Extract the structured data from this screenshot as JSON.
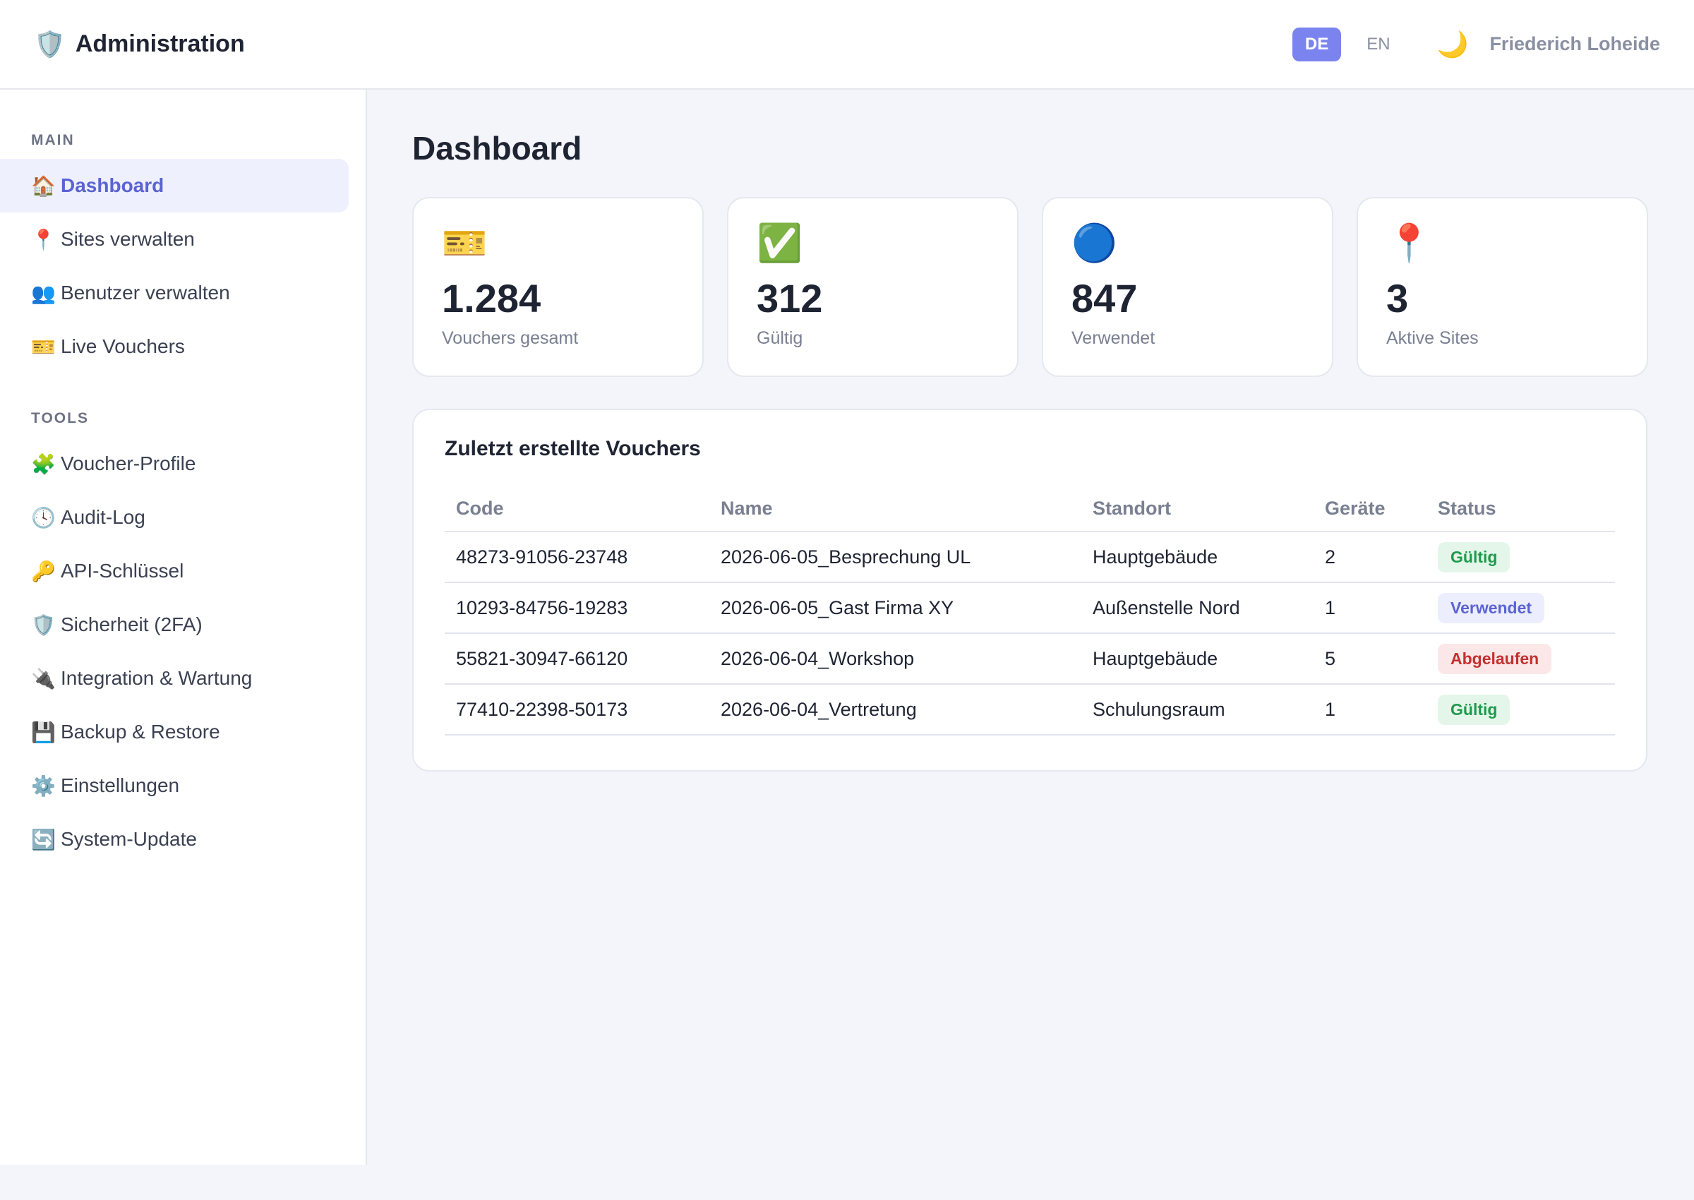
{
  "header": {
    "brand_icon": "shield-icon",
    "brand_glyph": "🛡️",
    "title": "Administration",
    "languages": [
      "DE",
      "EN"
    ],
    "active_language": "DE",
    "theme_glyph": "🌙",
    "user_name": "Friederich Loheide"
  },
  "sidebar": {
    "main_label": "MAIN",
    "tools_label": "TOOLS",
    "main_items": [
      {
        "icon": "🏠",
        "label": "Dashboard",
        "active": true
      },
      {
        "icon": "📍",
        "label": "Sites verwalten"
      },
      {
        "icon": "👥",
        "label": "Benutzer verwalten"
      },
      {
        "icon": "🎫",
        "label": "Live Vouchers"
      }
    ],
    "tools_items": [
      {
        "icon": "🧩",
        "label": "Voucher-Profile"
      },
      {
        "icon": "🕓",
        "label": "Audit-Log"
      },
      {
        "icon": "🔑",
        "label": "API-Schlüssel"
      },
      {
        "icon": "🛡️",
        "label": "Sicherheit (2FA)"
      },
      {
        "icon": "🔌",
        "label": "Integration & Wartung"
      },
      {
        "icon": "💾",
        "label": "Backup & Restore"
      },
      {
        "icon": "⚙️",
        "label": "Einstellungen"
      },
      {
        "icon": "🔄",
        "label": "System-Update"
      }
    ]
  },
  "main": {
    "title": "Dashboard",
    "stats": [
      {
        "icon": "🎫",
        "value": "1.284",
        "label": "Vouchers gesamt"
      },
      {
        "icon": "✅",
        "value": "312",
        "label": "Gültig"
      },
      {
        "icon": "🔵",
        "value": "847",
        "label": "Verwendet"
      },
      {
        "icon": "📍",
        "value": "3",
        "label": "Aktive Sites"
      }
    ],
    "recent": {
      "title": "Zuletzt erstellte Vouchers",
      "columns": [
        "Code",
        "Name",
        "Standort",
        "Geräte",
        "Status"
      ],
      "rows": [
        {
          "code": "48273-91056-23748",
          "name": "2026-06-05_Besprechung UL",
          "site": "Hauptgebäude",
          "devices": "2",
          "status": "Gültig"
        },
        {
          "code": "10293-84756-19283",
          "name": "2026-06-05_Gast Firma XY",
          "site": "Außenstelle Nord",
          "devices": "1",
          "status": "Verwendet"
        },
        {
          "code": "55821-30947-66120",
          "name": "2026-06-04_Workshop",
          "site": "Hauptgebäude",
          "devices": "5",
          "status": "Abgelaufen"
        },
        {
          "code": "77410-22398-50173",
          "name": "2026-06-04_Vertretung",
          "site": "Schulungsraum",
          "devices": "1",
          "status": "Gültig"
        }
      ]
    }
  },
  "colors": {
    "accent": "#7b84ee",
    "active_nav_bg": "#eef0fd",
    "active_nav_text": "#5b63d3",
    "status_valid": "#1f9a4c",
    "status_used": "#5b63d3",
    "status_expired": "#c53030"
  }
}
